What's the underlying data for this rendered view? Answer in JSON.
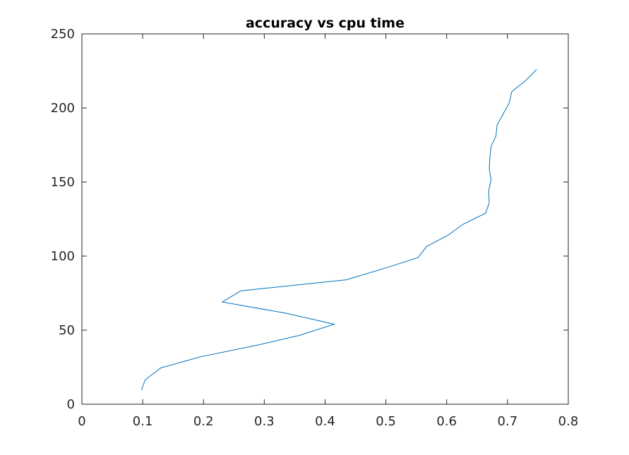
{
  "chart_data": {
    "type": "line",
    "title": "accuracy vs cpu time",
    "xlabel": "",
    "ylabel": "",
    "xlim": [
      0,
      0.8
    ],
    "ylim": [
      0,
      250
    ],
    "xticks": [
      "0",
      "0.1",
      "0.2",
      "0.3",
      "0.4",
      "0.5",
      "0.6",
      "0.7",
      "0.8"
    ],
    "yticks": [
      "0",
      "50",
      "100",
      "150",
      "200",
      "250"
    ],
    "grid": false,
    "legend": "none",
    "series": [
      {
        "color": "#0072BD",
        "points": [
          [
            0.098,
            9.5
          ],
          [
            0.104,
            16.5
          ],
          [
            0.13,
            24.5
          ],
          [
            0.195,
            32
          ],
          [
            0.29,
            40
          ],
          [
            0.358,
            46.5
          ],
          [
            0.415,
            54
          ],
          [
            0.335,
            61.5
          ],
          [
            0.231,
            69
          ],
          [
            0.261,
            76.5
          ],
          [
            0.435,
            84
          ],
          [
            0.5,
            92
          ],
          [
            0.553,
            99
          ],
          [
            0.567,
            106.5
          ],
          [
            0.602,
            114
          ],
          [
            0.627,
            121.5
          ],
          [
            0.664,
            129
          ],
          [
            0.67,
            136
          ],
          [
            0.669,
            144
          ],
          [
            0.673,
            151.5
          ],
          [
            0.67,
            159
          ],
          [
            0.671,
            166.5
          ],
          [
            0.673,
            174
          ],
          [
            0.681,
            181
          ],
          [
            0.683,
            188.5
          ],
          [
            0.693,
            196
          ],
          [
            0.703,
            203.5
          ],
          [
            0.707,
            211
          ],
          [
            0.73,
            218.5
          ],
          [
            0.748,
            226
          ]
        ]
      }
    ]
  }
}
